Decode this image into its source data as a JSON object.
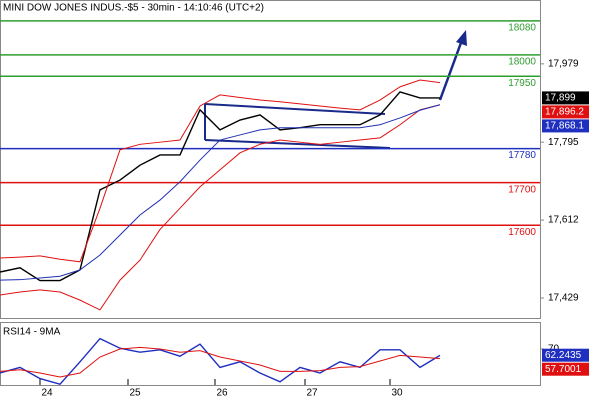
{
  "chart_data": [
    {
      "type": "line",
      "title": "MINI DOW JONES INDUS.-$5 - 30min - 14:10:46 (UTC+2)",
      "x": [
        0,
        2,
        4,
        6,
        8,
        10,
        12,
        14,
        16,
        18,
        20,
        22,
        24,
        26,
        28,
        30,
        32,
        34,
        36,
        38,
        40,
        42,
        44
      ],
      "xlim": [
        0,
        54
      ],
      "ylim": [
        17382,
        18129
      ],
      "yticks": [
        {
          "value": 17429,
          "label": "17,429"
        },
        {
          "value": 17612,
          "label": "17,612"
        },
        {
          "value": 17795,
          "label": "17,795"
        },
        {
          "value": 17979,
          "label": "17,979"
        }
      ],
      "levels": [
        {
          "value": 18080,
          "color": "#2e9e2e"
        },
        {
          "value": 18000,
          "color": "#2e9e2e"
        },
        {
          "value": 17950,
          "color": "#2e9e2e"
        },
        {
          "value": 17780,
          "color": "#1f2fbf"
        },
        {
          "value": 17700,
          "color": "#e01010"
        },
        {
          "value": 17600,
          "color": "#e01010"
        }
      ],
      "series": [
        {
          "color": "#000000",
          "values": [
            17490,
            17500,
            17470,
            17470,
            17495,
            17683,
            17706,
            17741,
            17765,
            17765,
            17871,
            17824,
            17847,
            17859,
            17824,
            17829,
            17836,
            17836,
            17836,
            17859,
            17913,
            17899,
            17899
          ]
        },
        {
          "color": "#e01010",
          "values": [
            17523,
            17525,
            17528,
            17520,
            17514,
            17640,
            17777,
            17790,
            17795,
            17800,
            17880,
            17906,
            17900,
            17894,
            17890,
            17885,
            17880,
            17875,
            17871,
            17894,
            17925,
            17941,
            17935
          ]
        },
        {
          "color": "#e01010",
          "values": [
            17436,
            17443,
            17448,
            17443,
            17424,
            17401,
            17471,
            17518,
            17590,
            17640,
            17690,
            17730,
            17770,
            17790,
            17800,
            17795,
            17790,
            17795,
            17800,
            17805,
            17836,
            17871,
            17883
          ]
        },
        {
          "color": "#2030b0",
          "values": [
            17471,
            17472,
            17476,
            17480,
            17495,
            17530,
            17577,
            17624,
            17659,
            17702,
            17753,
            17800,
            17812,
            17824,
            17829,
            17829,
            17829,
            17829,
            17829,
            17836,
            17852,
            17870,
            17883
          ]
        }
      ],
      "last_values": [
        {
          "value": 17899,
          "label": "17,899",
          "color": "#000000"
        },
        {
          "value": 17896.2,
          "label": "17,896.2",
          "color": "#e01010"
        },
        {
          "value": 17868.1,
          "label": "17,868.1",
          "color": "#1f2fbf"
        }
      ]
    },
    {
      "type": "line",
      "title": "RSI14 - 9MA",
      "x": [
        0,
        2,
        4,
        6,
        8,
        10,
        12,
        14,
        16,
        18,
        20,
        22,
        24,
        26,
        28,
        30,
        32,
        34,
        36,
        38,
        40,
        42,
        44
      ],
      "xlim": [
        0,
        54
      ],
      "ylim": [
        25,
        103.75
      ],
      "yticks": [
        70
      ],
      "xticks": [
        {
          "value": 4,
          "label": "24"
        },
        {
          "value": 12.8,
          "label": "25"
        },
        {
          "value": 21.5,
          "label": "26"
        },
        {
          "value": 30.5,
          "label": "27"
        },
        {
          "value": 39,
          "label": "30"
        }
      ],
      "series": [
        {
          "color": "#1f2fbf",
          "values": [
            40,
            47,
            33,
            26,
            54,
            83,
            71,
            66,
            69,
            61,
            76,
            47,
            54,
            40,
            29,
            47,
            40,
            54,
            47,
            69,
            69,
            47,
            62
          ]
        },
        {
          "color": "#e01010",
          "values": [
            42,
            44,
            40,
            35,
            40,
            60,
            70,
            72,
            70,
            66,
            68,
            60,
            55,
            50,
            42,
            42,
            43,
            47,
            48,
            55,
            62,
            60,
            58
          ]
        }
      ],
      "last_values": [
        {
          "value": 62.2435,
          "label": "62.2435",
          "color": "#1f2fbf"
        },
        {
          "value": 57.7001,
          "label": "57.7001",
          "color": "#e01010"
        }
      ]
    }
  ]
}
